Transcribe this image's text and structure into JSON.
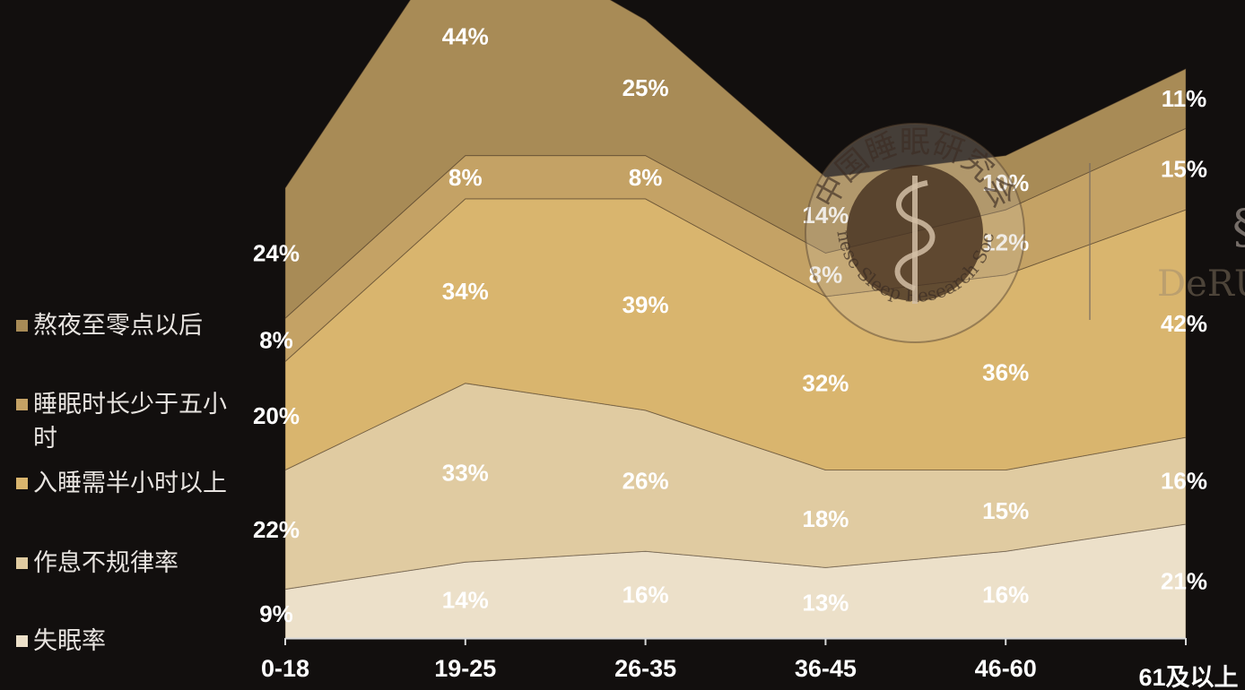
{
  "chart_data": {
    "type": "area",
    "stacked": true,
    "categories": [
      "0-18",
      "19-25",
      "26-35",
      "36-45",
      "46-60",
      "61及以上"
    ],
    "series": [
      {
        "name": "失眠率",
        "values": [
          9,
          14,
          16,
          13,
          16,
          21
        ],
        "labels": [
          "9%",
          "14%",
          "16%",
          "13%",
          "16%",
          "21%"
        ],
        "color": "#ece0c9"
      },
      {
        "name": "作息不规律率",
        "values": [
          22,
          33,
          26,
          18,
          15,
          16
        ],
        "labels": [
          "22%",
          "33%",
          "26%",
          "18%",
          "15%",
          "16%"
        ],
        "color": "#e0cba1"
      },
      {
        "name": "入睡需半小时以上",
        "values": [
          20,
          34,
          39,
          32,
          36,
          42
        ],
        "labels": [
          "20%",
          "34%",
          "39%",
          "32%",
          "36%",
          "42%"
        ],
        "color": "#d9b56e"
      },
      {
        "name": "睡眠时长少于五小时",
        "values": [
          8,
          8,
          8,
          8,
          12,
          15
        ],
        "labels": [
          "8%",
          "8%",
          "8%",
          "8%",
          "12%",
          "15%"
        ],
        "color": "#c4a265"
      },
      {
        "name": "熬夜至零点以后",
        "values": [
          24,
          44,
          25,
          14,
          10,
          11
        ],
        "labels": [
          "24%",
          "44%",
          "25%",
          "14%",
          "10%",
          "11%"
        ],
        "color": "#a88b56"
      }
    ],
    "legend_order": [
      "熬夜至零点以后",
      "睡眠时长少于五小时",
      "入睡需半小时以上",
      "作息不规律率",
      "失眠率"
    ],
    "legend_position": "left",
    "grid": false,
    "data_labels": true
  },
  "watermark": {
    "seal_text": "中国睡眠研究会",
    "seal_text_en": "Chinese Sleep Research Society",
    "brand_text": "DeRU"
  }
}
